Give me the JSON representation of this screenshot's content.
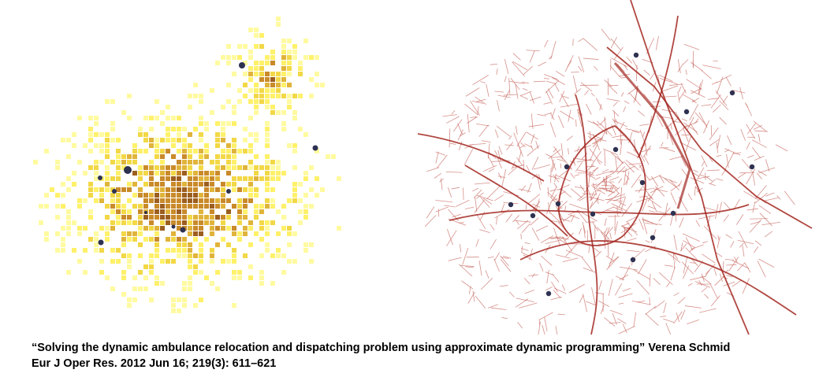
{
  "figure": {
    "left_panel": {
      "kind": "heatmap",
      "cell_colors": [
        "#fffaa0",
        "#fff16a",
        "#f2d846",
        "#e0b43a",
        "#c98a2a",
        "#9c5e1e"
      ],
      "station_color": "#2e3150"
    },
    "right_panel": {
      "kind": "road-network",
      "road_color": "#c86b63",
      "major_road_color": "#a3261f",
      "station_color": "#2e3150"
    }
  },
  "caption": {
    "line1": "“Solving the dynamic ambulance relocation and dispatching problem using approximate dynamic programming” Verena Schmid",
    "line2": "Eur J Oper Res. 2012 Jun 16; 219(3): 611–621"
  }
}
